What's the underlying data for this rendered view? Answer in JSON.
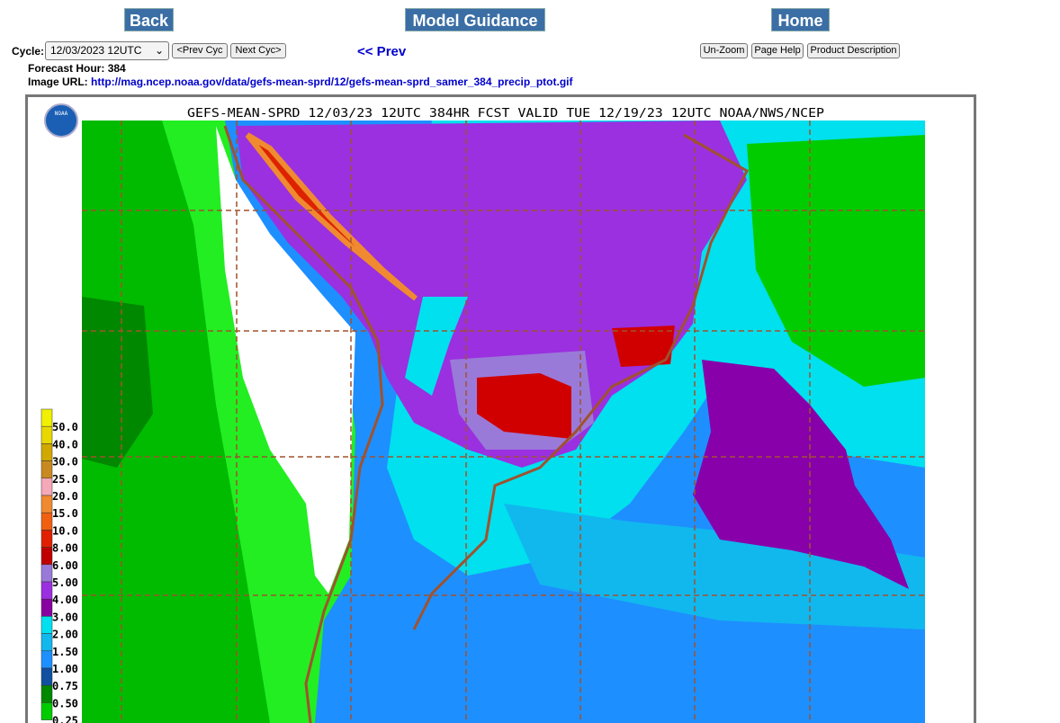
{
  "nav": {
    "back": "Back",
    "model_guidance": "Model Guidance",
    "home": "Home"
  },
  "controls": {
    "cycle_label": "Cycle:",
    "cycle_value": "12/03/2023 12UTC",
    "prev_cyc": "<Prev Cyc",
    "next_cyc": "Next Cyc>",
    "prev": "<< Prev",
    "unzoom": "Un-Zoom",
    "page_help": "Page Help",
    "product_description": "Product Description"
  },
  "info": {
    "forecast_hour_label": "Forecast Hour:",
    "forecast_hour": "384",
    "image_url_label": "Image URL:",
    "image_url": "http://mag.ncep.noaa.gov/data/gefs-mean-sprd/12/gefs-mean-sprd_samer_384_precip_ptot.gif"
  },
  "map": {
    "title": "GEFS-MEAN-SPRD 12/03/23 12UTC 384HR FCST VALID TUE 12/19/23 12UTC NOAA/NWS/NCEP",
    "logo": "NOAA",
    "legend": [
      {
        "label": "50.0",
        "color": "#f0f000"
      },
      {
        "label": "40.0",
        "color": "#e8d800"
      },
      {
        "label": "30.0",
        "color": "#d0a800"
      },
      {
        "label": "25.0",
        "color": "#c88a20"
      },
      {
        "label": "20.0",
        "color": "#f5a8b8"
      },
      {
        "label": "15.0",
        "color": "#f08a30"
      },
      {
        "label": "10.0",
        "color": "#f06010"
      },
      {
        "label": "8.00",
        "color": "#e02000"
      },
      {
        "label": "6.00",
        "color": "#c00000"
      },
      {
        "label": "5.00",
        "color": "#9a7ad8"
      },
      {
        "label": "4.00",
        "color": "#9a30e0"
      },
      {
        "label": "3.00",
        "color": "#8800a0"
      },
      {
        "label": "2.00",
        "color": "#00e0ee"
      },
      {
        "label": "1.50",
        "color": "#10b8ee"
      },
      {
        "label": "1.00",
        "color": "#1e8fff"
      },
      {
        "label": "0.75",
        "color": "#1050a0"
      },
      {
        "label": "0.50",
        "color": "#008800"
      },
      {
        "label": "0.25",
        "color": "#00cc00"
      }
    ]
  }
}
